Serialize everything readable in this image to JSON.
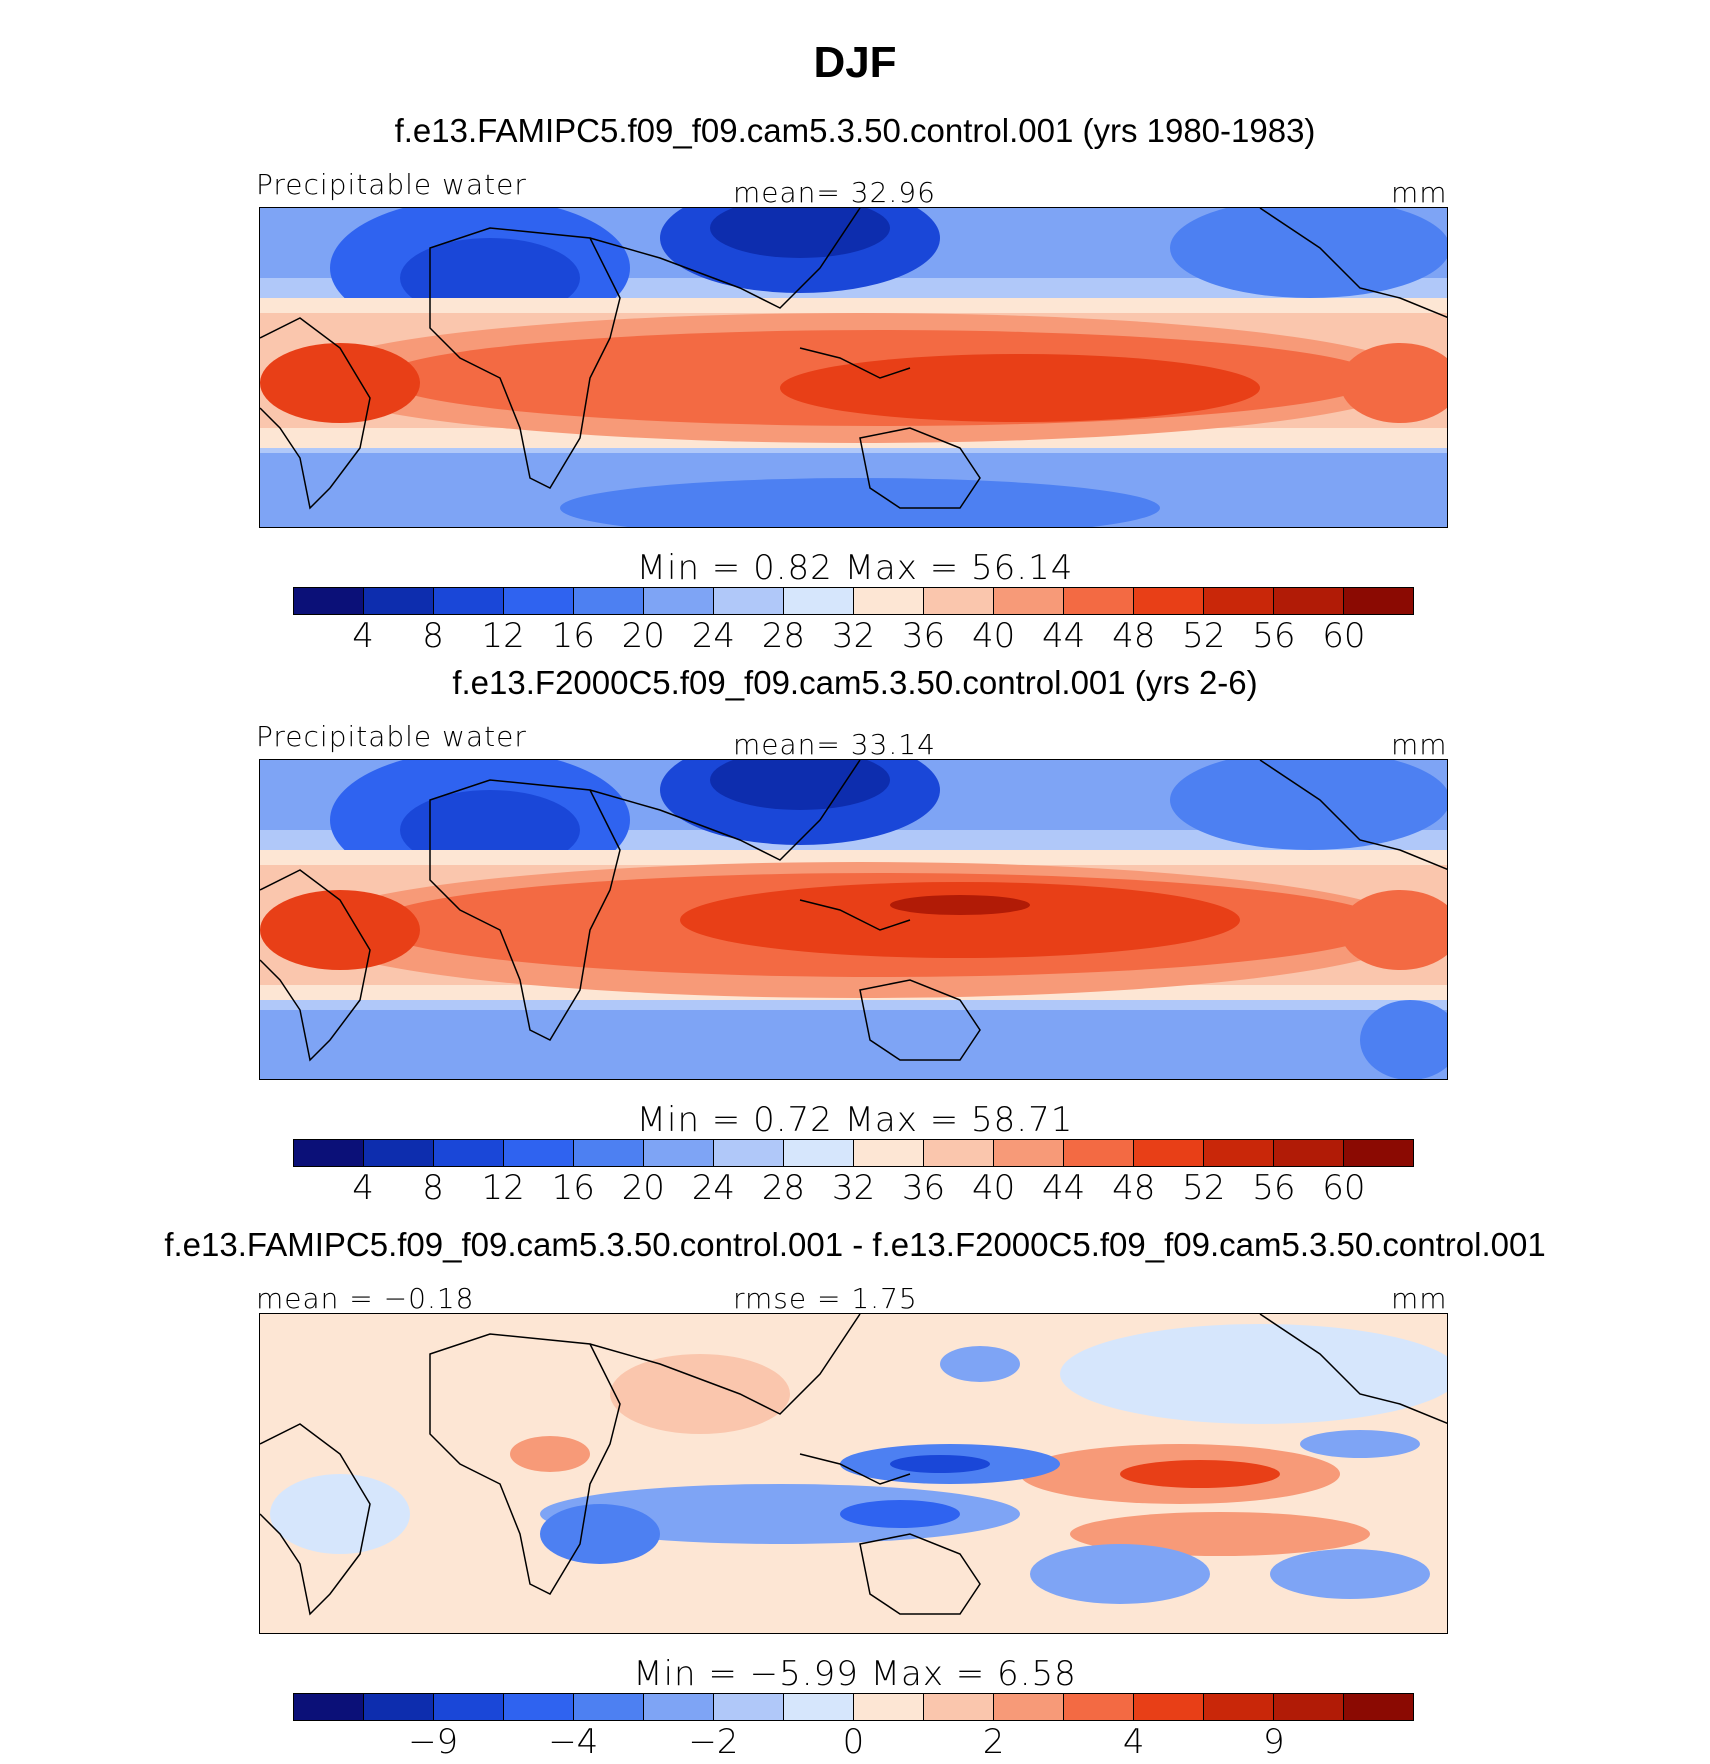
{
  "title": "DJF",
  "colors": {
    "precip_scale": [
      "#0b1078",
      "#0d2dae",
      "#1a47d8",
      "#2f63f0",
      "#4d80f2",
      "#7ea4f5",
      "#b0c8f9",
      "#d6e6fc",
      "#fde6d4",
      "#fac6ad",
      "#f79a78",
      "#f36a43",
      "#e83f17",
      "#c92709",
      "#b11b06",
      "#8b0a02"
    ],
    "diff_scale": [
      "#0b1078",
      "#0d2dae",
      "#1a47d8",
      "#2f63f0",
      "#4d80f2",
      "#7ea4f5",
      "#b0c8f9",
      "#d6e6fc",
      "#fde6d4",
      "#fac6ad",
      "#f79a78",
      "#f36a43",
      "#e83f17",
      "#c92709",
      "#b11b06",
      "#8b0a02"
    ]
  },
  "panels": [
    {
      "run_title": "f.e13.FAMIPC5.f09_f09.cam5.3.50.control.001 (yrs 1980-1983)",
      "left_label": "Precipitable water",
      "center_label": "mean=   32.96",
      "right_label": "mm",
      "minmax": "Min =    0.82  Max =   56.14",
      "ticks": [
        "4",
        "8",
        "12",
        "16",
        "20",
        "24",
        "28",
        "32",
        "36",
        "40",
        "44",
        "48",
        "52",
        "56",
        "60"
      ]
    },
    {
      "run_title": "f.e13.F2000C5.f09_f09.cam5.3.50.control.001 (yrs 2-6)",
      "left_label": "Precipitable water",
      "center_label": "mean=   33.14",
      "right_label": "mm",
      "minmax": "Min =    0.72  Max =   58.71",
      "ticks": [
        "4",
        "8",
        "12",
        "16",
        "20",
        "24",
        "28",
        "32",
        "36",
        "40",
        "44",
        "48",
        "52",
        "56",
        "60"
      ]
    },
    {
      "run_title": "f.e13.FAMIPC5.f09_f09.cam5.3.50.control.001 - f.e13.F2000C5.f09_f09.cam5.3.50.control.001",
      "left_label": "mean =  −0.18",
      "center_label": "rmse =    1.75",
      "right_label": "mm",
      "minmax": "Min =   −5.99  Max =    6.58",
      "ticks": [
        "−9",
        "−4",
        "−2",
        "0",
        "2",
        "4",
        "9"
      ]
    }
  ]
}
